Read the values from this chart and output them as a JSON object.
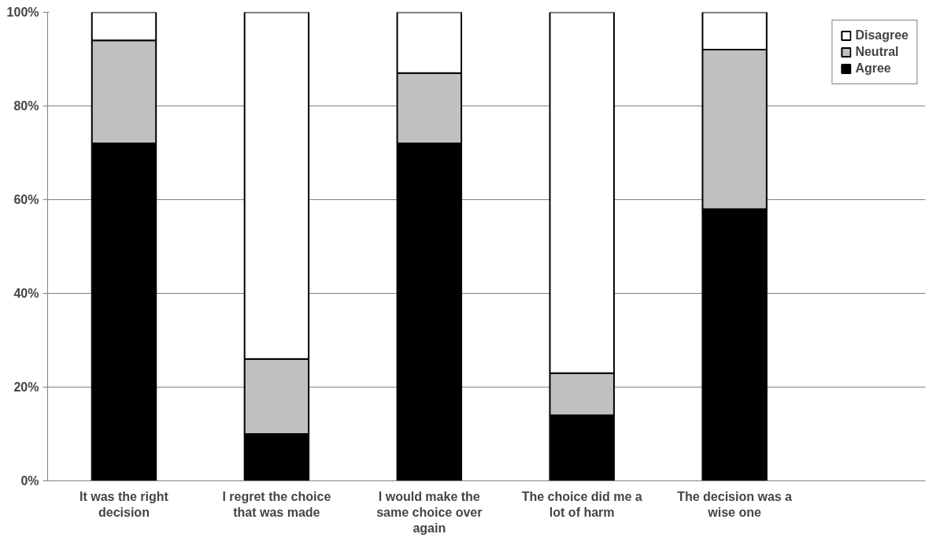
{
  "chart_data": {
    "type": "bar",
    "stacked": true,
    "categories": [
      "It was the right decision",
      "I regret the choice that was made",
      "I would make the same choice over again",
      "The choice did me a lot of harm",
      "The decision was a wise one"
    ],
    "series": [
      {
        "name": "Agree",
        "color": "#000000",
        "values": [
          72,
          10,
          72,
          14,
          58
        ]
      },
      {
        "name": "Neutral",
        "color": "#c0c0c0",
        "values": [
          22,
          16,
          15,
          9,
          34
        ]
      },
      {
        "name": "Disagree",
        "color": "#ffffff",
        "values": [
          6,
          74,
          13,
          77,
          8
        ]
      }
    ],
    "ylim": [
      0,
      100
    ],
    "yticks": [
      {
        "value": 0,
        "label": "0%"
      },
      {
        "value": 20,
        "label": "20%"
      },
      {
        "value": 40,
        "label": "40%"
      },
      {
        "value": 60,
        "label": "60%"
      },
      {
        "value": 80,
        "label": "80%"
      },
      {
        "value": 100,
        "label": "100%"
      }
    ],
    "grid": "y",
    "legend": "right"
  }
}
